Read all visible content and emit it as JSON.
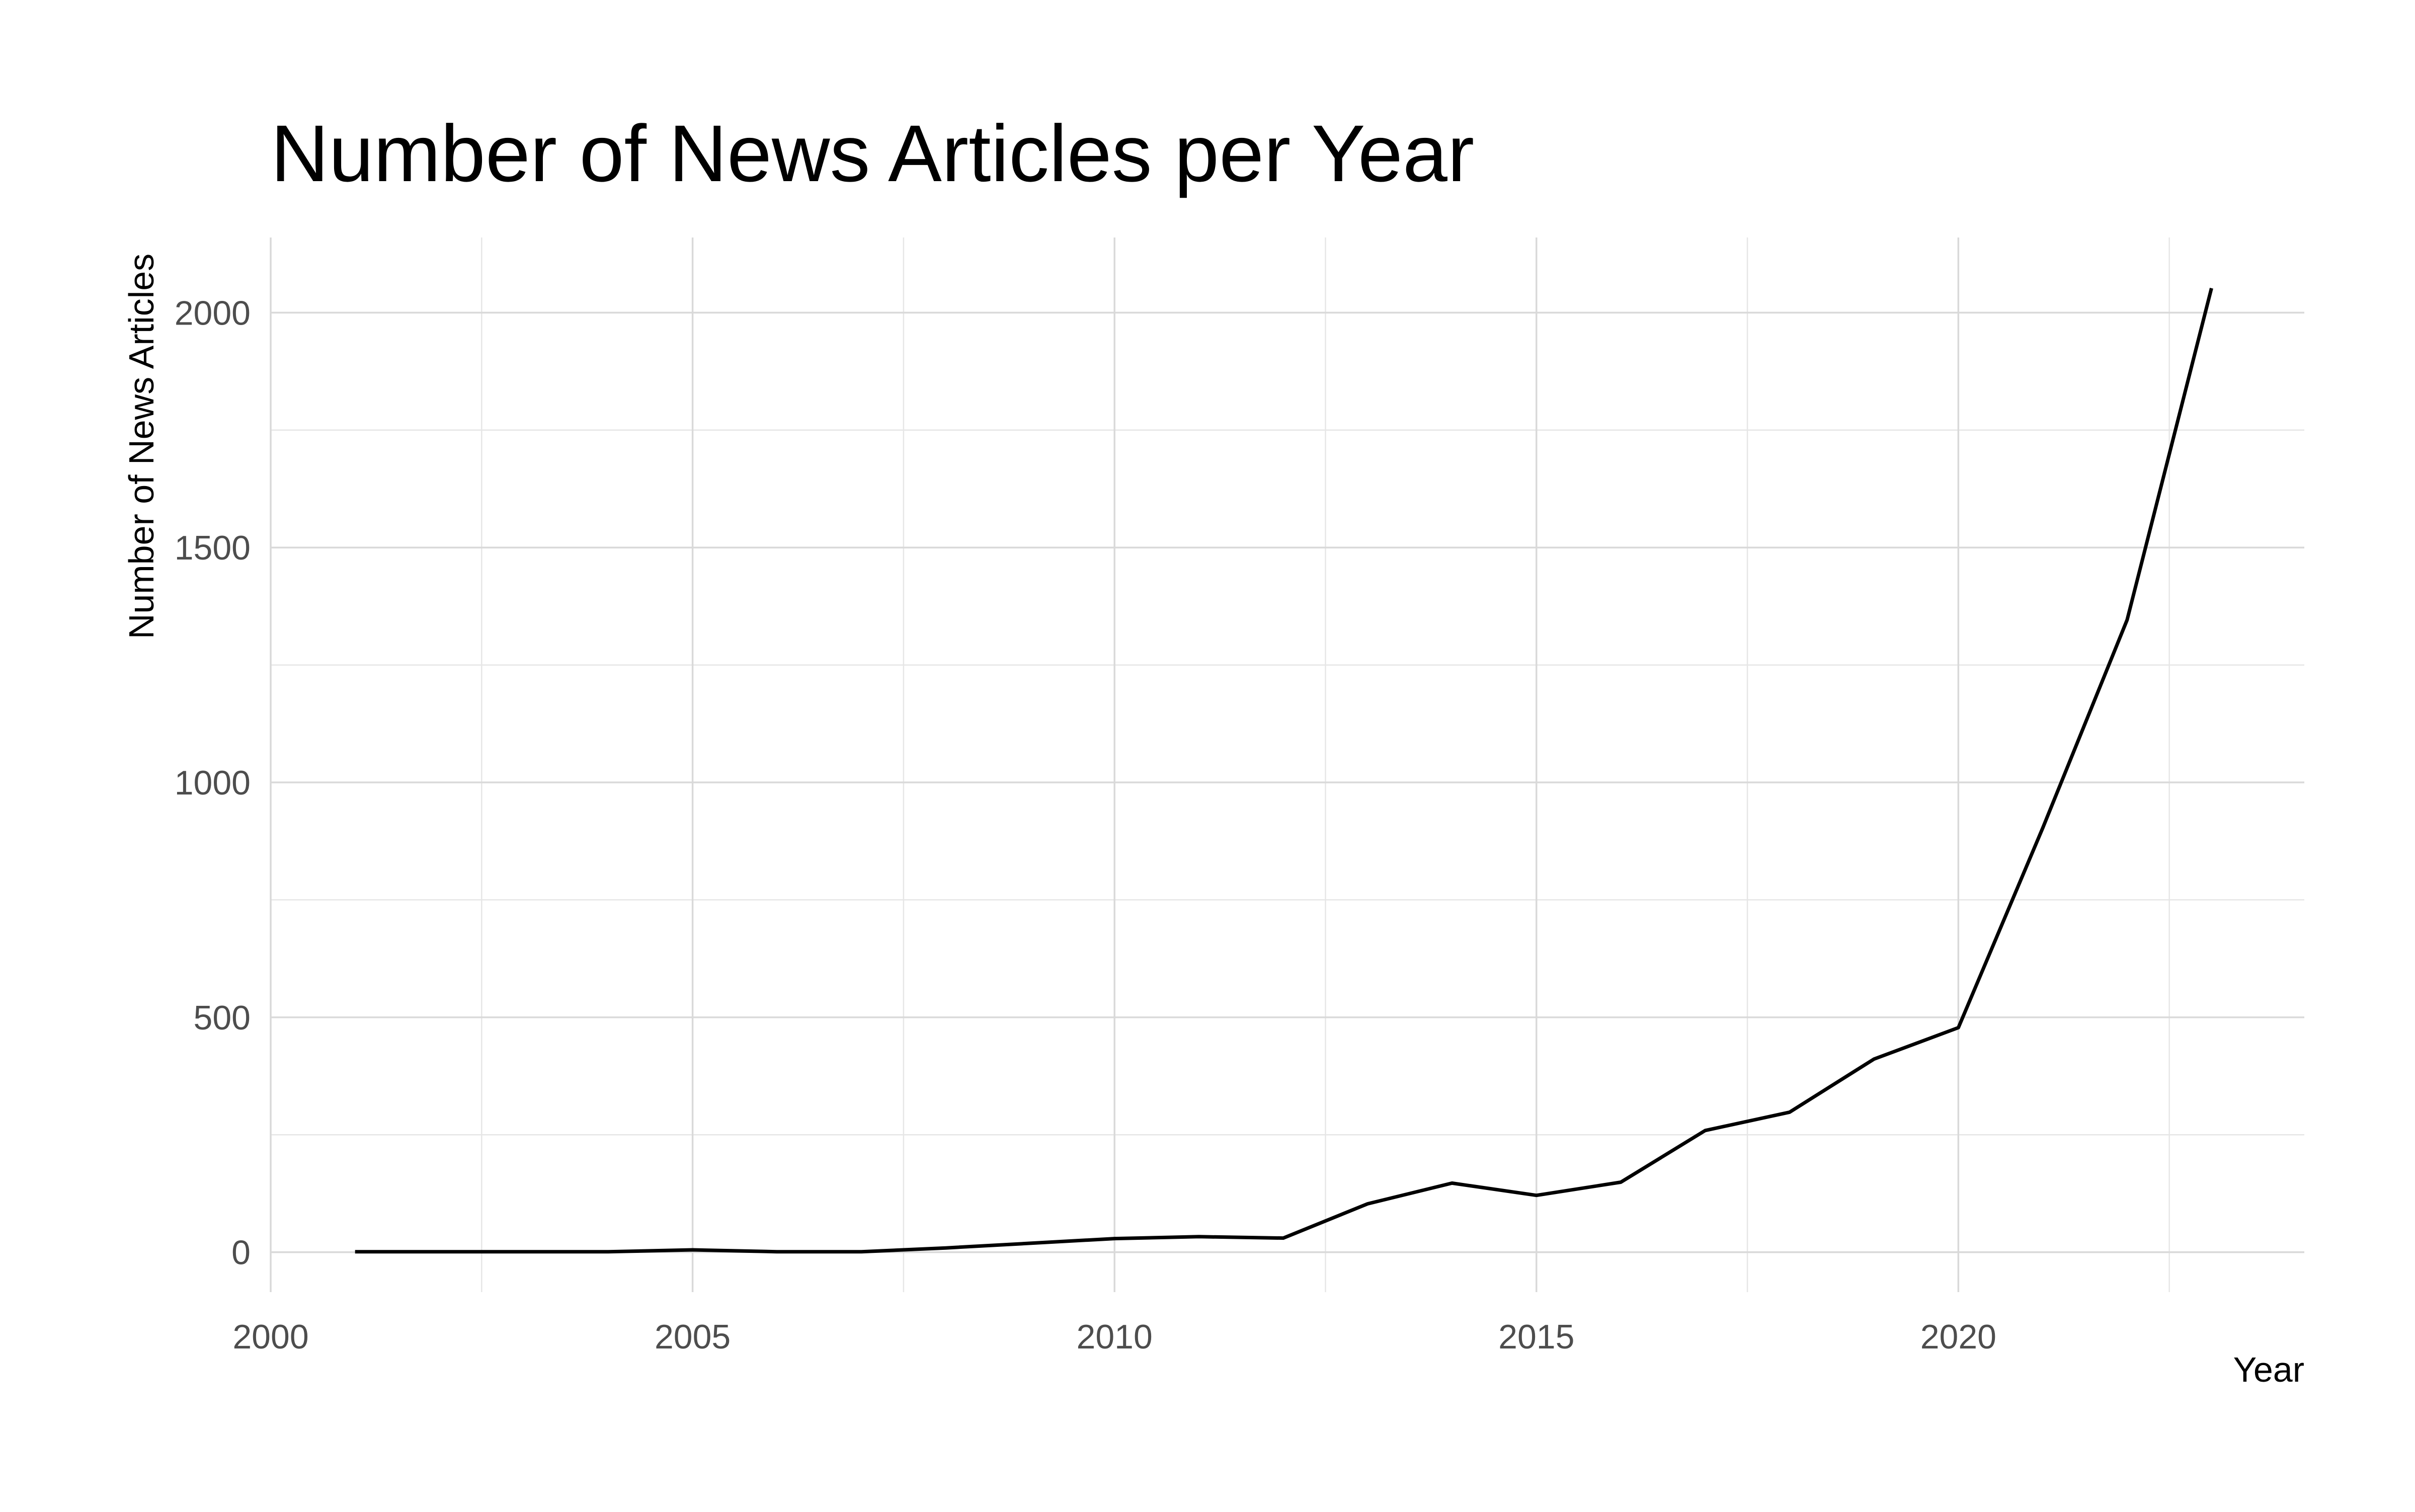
{
  "chart_data": {
    "type": "line",
    "title": "Number of News Articles per Year",
    "xlabel": "Year",
    "ylabel": "Number of News Articles",
    "xlim": [
      2000,
      2024.1
    ],
    "ylim": [
      -85,
      2160
    ],
    "x_ticks": [
      2000,
      2005,
      2010,
      2015,
      2020
    ],
    "x_tick_labels": [
      "2000",
      "2005",
      "2010",
      "2015",
      "2020"
    ],
    "x_minor_ticks": [
      2002.5,
      2007.5,
      2012.5,
      2017.5,
      2022.5
    ],
    "y_ticks": [
      0,
      500,
      1000,
      1500,
      2000
    ],
    "y_tick_labels": [
      "0",
      "500",
      "1000",
      "1500",
      "2000"
    ],
    "y_minor_ticks": [
      250,
      750,
      1250,
      1750
    ],
    "grid": true,
    "legend": "none",
    "line_color": "#000000",
    "x": [
      2001,
      2002,
      2003,
      2004,
      2005,
      2006,
      2007,
      2008,
      2009,
      2010,
      2011,
      2012,
      2013,
      2014,
      2015,
      2016,
      2017,
      2018,
      2019,
      2020,
      2021,
      2022,
      2023
    ],
    "series": [
      {
        "values": [
          1,
          1,
          1,
          1,
          5,
          1,
          1,
          9,
          19,
          29,
          33,
          30,
          103,
          147,
          121,
          149,
          259,
          298,
          411,
          478,
          903,
          1346,
          2052
        ]
      }
    ]
  }
}
